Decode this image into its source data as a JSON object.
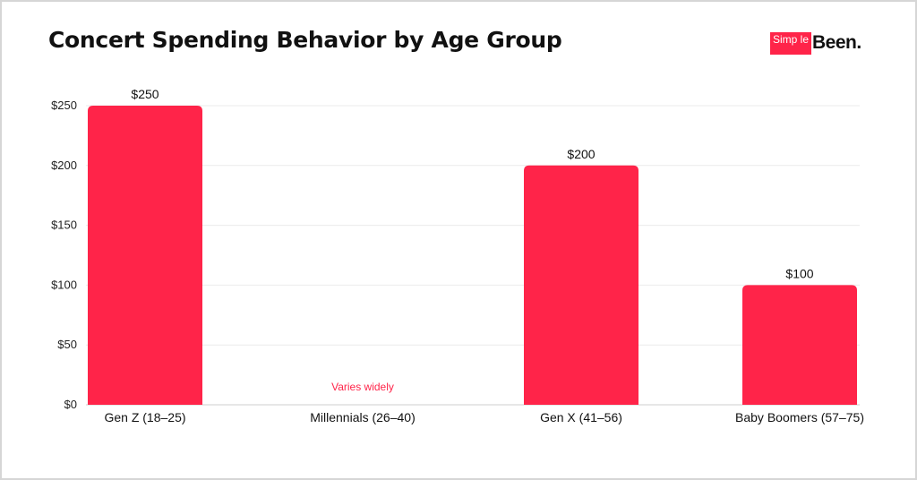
{
  "header": {
    "title": "Concert Spending Behavior by Age Group",
    "logo_box_text": "Simp le",
    "logo_word": "Been."
  },
  "colors": {
    "bar": "#ff2449",
    "note": "#ff2449",
    "grid": "#ebebeb",
    "axis": "#cfcfcf"
  },
  "chart_data": {
    "type": "bar",
    "title": "Concert Spending Behavior by Age Group",
    "categories": [
      "Gen Z (18–25)",
      "Millennials (26–40)",
      "Gen X (41–56)",
      "Baby Boomers (57–75)"
    ],
    "values": [
      250,
      null,
      200,
      100
    ],
    "data_labels": [
      "$250",
      "",
      "$200",
      "$100"
    ],
    "annotations": [
      {
        "category": "Millennials (26–40)",
        "text": "Varies widely"
      }
    ],
    "yticks": [
      0,
      50,
      100,
      150,
      200,
      250
    ],
    "ytick_labels": [
      "$0",
      "$50",
      "$100",
      "$150",
      "$200",
      "$250"
    ],
    "ylim": [
      0,
      250
    ],
    "xlabel": "",
    "ylabel": "",
    "grid": true,
    "legend": "none"
  }
}
